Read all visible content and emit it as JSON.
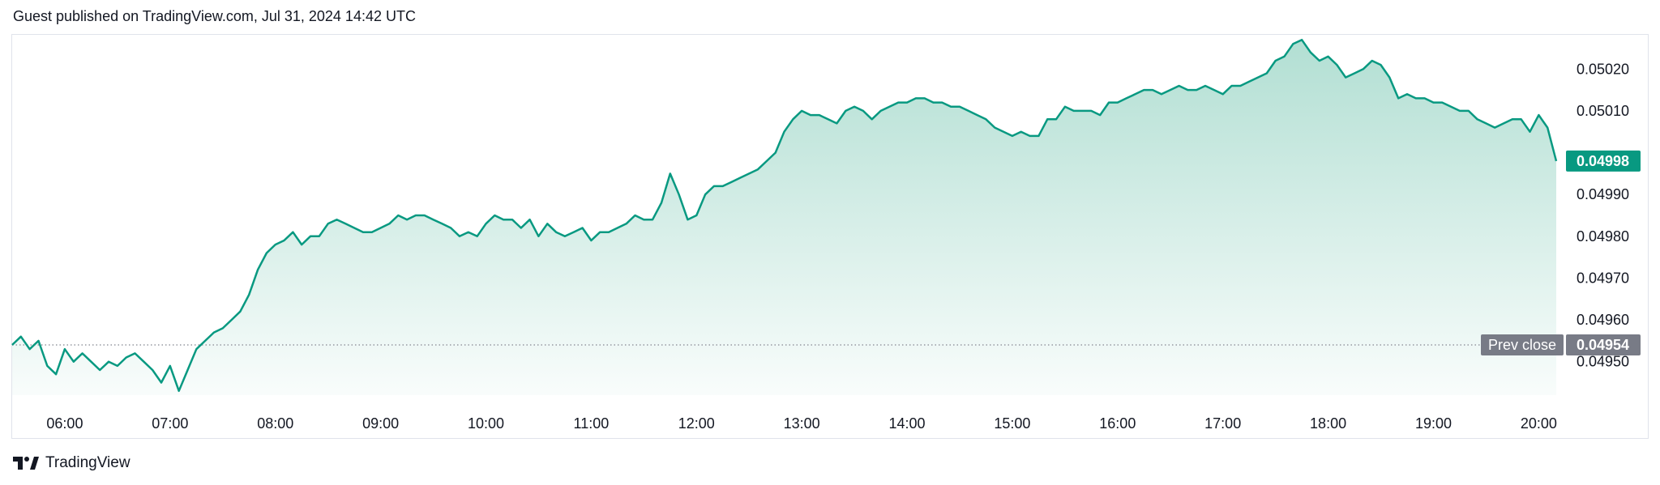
{
  "header": {
    "published_text": "Guest published on TradingView.com, Jul 31, 2024 14:42 UTC"
  },
  "footer": {
    "brand": "TradingView"
  },
  "colors": {
    "line": "#089981",
    "fill_top": "#b2dfd3",
    "badge_last": "#089981",
    "badge_prev": "#787b86",
    "axis_text": "#131722",
    "prev_line": "#9598a1"
  },
  "chart_data": {
    "type": "area",
    "x_ticks": [
      "06:00",
      "07:00",
      "08:00",
      "09:00",
      "10:00",
      "11:00",
      "12:00",
      "13:00",
      "14:00",
      "15:00",
      "16:00",
      "17:00",
      "18:00",
      "19:00",
      "20:00"
    ],
    "y_ticks": [
      "0.04950",
      "0.04960",
      "0.04970",
      "0.04980",
      "0.04990",
      "0.05010",
      "0.05020"
    ],
    "ylim": [
      0.04942,
      0.05028
    ],
    "xlim": [
      "05:30",
      "20:10"
    ],
    "last_value_label": "0.04998",
    "last_value": 0.04998,
    "prev_close_label": "Prev close",
    "prev_close_value_label": "0.04954",
    "prev_close": 0.04954,
    "series": [
      {
        "x": [
          "05:30",
          "05:35",
          "05:40",
          "05:45",
          "05:50",
          "05:55",
          "06:00",
          "06:05",
          "06:10",
          "06:15",
          "06:20",
          "06:25",
          "06:30",
          "06:35",
          "06:40",
          "06:45",
          "06:50",
          "06:55",
          "07:00",
          "07:05",
          "07:10",
          "07:15",
          "07:20",
          "07:25",
          "07:30",
          "07:35",
          "07:40",
          "07:45",
          "07:50",
          "07:55",
          "08:00",
          "08:05",
          "08:10",
          "08:15",
          "08:20",
          "08:25",
          "08:30",
          "08:35",
          "08:40",
          "08:45",
          "08:50",
          "08:55",
          "09:00",
          "09:05",
          "09:10",
          "09:15",
          "09:20",
          "09:25",
          "09:30",
          "09:35",
          "09:40",
          "09:45",
          "09:50",
          "09:55",
          "10:00",
          "10:05",
          "10:10",
          "10:15",
          "10:20",
          "10:25",
          "10:30",
          "10:35",
          "10:40",
          "10:45",
          "10:50",
          "10:55",
          "11:00",
          "11:05",
          "11:10",
          "11:15",
          "11:20",
          "11:25",
          "11:30",
          "11:35",
          "11:40",
          "11:45",
          "11:50",
          "11:55",
          "12:00",
          "12:05",
          "12:10",
          "12:15",
          "12:20",
          "12:25",
          "12:30",
          "12:35",
          "12:40",
          "12:45",
          "12:50",
          "12:55",
          "13:00",
          "13:05",
          "13:10",
          "13:15",
          "13:20",
          "13:25",
          "13:30",
          "13:35",
          "13:40",
          "13:45",
          "13:50",
          "13:55",
          "14:00",
          "14:05",
          "14:10",
          "14:15",
          "14:20",
          "14:25",
          "14:30",
          "14:35",
          "14:40",
          "14:45",
          "14:50",
          "14:55",
          "15:00",
          "15:05",
          "15:10",
          "15:15",
          "15:20",
          "15:25",
          "15:30",
          "15:35",
          "15:40",
          "15:45",
          "15:50",
          "15:55",
          "16:00",
          "16:05",
          "16:10",
          "16:15",
          "16:20",
          "16:25",
          "16:30",
          "16:35",
          "16:40",
          "16:45",
          "16:50",
          "16:55",
          "17:00",
          "17:05",
          "17:10",
          "17:15",
          "17:20",
          "17:25",
          "17:30",
          "17:35",
          "17:40",
          "17:45",
          "17:50",
          "17:55",
          "18:00",
          "18:05",
          "18:10",
          "18:15",
          "18:20",
          "18:25",
          "18:30",
          "18:35",
          "18:40",
          "18:45",
          "18:50",
          "18:55",
          "19:00",
          "19:05",
          "19:10",
          "19:15",
          "19:20",
          "19:25",
          "19:30",
          "19:35",
          "19:40",
          "19:45",
          "19:50",
          "19:55",
          "20:00",
          "20:05",
          "20:10"
        ],
        "y": [
          0.04954,
          0.04956,
          0.04953,
          0.04955,
          0.04949,
          0.04947,
          0.04953,
          0.0495,
          0.04952,
          0.0495,
          0.04948,
          0.0495,
          0.04949,
          0.04951,
          0.04952,
          0.0495,
          0.04948,
          0.04945,
          0.04949,
          0.04943,
          0.04948,
          0.04953,
          0.04955,
          0.04957,
          0.04958,
          0.0496,
          0.04962,
          0.04966,
          0.04972,
          0.04976,
          0.04978,
          0.04979,
          0.04981,
          0.04978,
          0.0498,
          0.0498,
          0.04983,
          0.04984,
          0.04983,
          0.04982,
          0.04981,
          0.04981,
          0.04982,
          0.04983,
          0.04985,
          0.04984,
          0.04985,
          0.04985,
          0.04984,
          0.04983,
          0.04982,
          0.0498,
          0.04981,
          0.0498,
          0.04983,
          0.04985,
          0.04984,
          0.04984,
          0.04982,
          0.04984,
          0.0498,
          0.04983,
          0.04981,
          0.0498,
          0.04981,
          0.04982,
          0.04979,
          0.04981,
          0.04981,
          0.04982,
          0.04983,
          0.04985,
          0.04984,
          0.04984,
          0.04988,
          0.04995,
          0.0499,
          0.04984,
          0.04985,
          0.0499,
          0.04992,
          0.04992,
          0.04993,
          0.04994,
          0.04995,
          0.04996,
          0.04998,
          0.05,
          0.05005,
          0.05008,
          0.0501,
          0.05009,
          0.05009,
          0.05008,
          0.05007,
          0.0501,
          0.05011,
          0.0501,
          0.05008,
          0.0501,
          0.05011,
          0.05012,
          0.05012,
          0.05013,
          0.05013,
          0.05012,
          0.05012,
          0.05011,
          0.05011,
          0.0501,
          0.05009,
          0.05008,
          0.05006,
          0.05005,
          0.05004,
          0.05005,
          0.05004,
          0.05004,
          0.05008,
          0.05008,
          0.05011,
          0.0501,
          0.0501,
          0.0501,
          0.05009,
          0.05012,
          0.05012,
          0.05013,
          0.05014,
          0.05015,
          0.05015,
          0.05014,
          0.05015,
          0.05016,
          0.05015,
          0.05015,
          0.05016,
          0.05015,
          0.05014,
          0.05016,
          0.05016,
          0.05017,
          0.05018,
          0.05019,
          0.05022,
          0.05023,
          0.05026,
          0.05027,
          0.05024,
          0.05022,
          0.05023,
          0.05021,
          0.05018,
          0.05019,
          0.0502,
          0.05022,
          0.05021,
          0.05018,
          0.05013,
          0.05014,
          0.05013,
          0.05013,
          0.05012,
          0.05012,
          0.05011,
          0.0501,
          0.0501,
          0.05008,
          0.05007,
          0.05006,
          0.05007,
          0.05008,
          0.05008,
          0.05005,
          0.05009,
          0.05006,
          0.04998
        ]
      }
    ]
  }
}
